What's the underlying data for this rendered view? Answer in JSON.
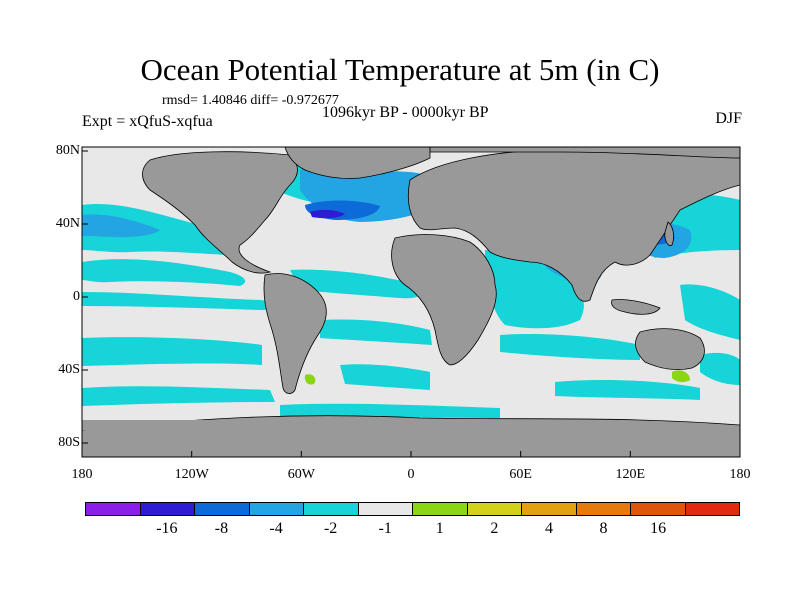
{
  "title": "Ocean Potential Temperature at 5m (in C)",
  "stats": "rmsd= 1.40846 diff= -0.972677",
  "experiment": "Expt = xQfuS-xqfua",
  "period": "1096kyr BP - 0000kyr BP",
  "season": "DJF",
  "x_ticks": [
    "180",
    "120W",
    "60W",
    "0",
    "60E",
    "120E",
    "180"
  ],
  "y_ticks": [
    "80N",
    "40N",
    "0",
    "40S",
    "80S"
  ],
  "colorbar": {
    "colors": [
      "#8b1ee8",
      "#2e1bd4",
      "#0d6ad9",
      "#23a4e3",
      "#16d4d8",
      "#e8e8e8",
      "#8ad614",
      "#d2d21a",
      "#e2a20f",
      "#e57b0c",
      "#e0550c",
      "#e22a0c"
    ],
    "labels": [
      "-16",
      "-8",
      "-4",
      "-2",
      "-1",
      "1",
      "2",
      "4",
      "8",
      "16"
    ]
  },
  "palette": {
    "land": "#999999",
    "neutral": "#e8e8e8",
    "light_cyan": "#16d4d8",
    "cyan": "#23a4e3",
    "blue": "#0d6ad9",
    "dark_blue": "#2e1bd4",
    "green": "#8ad614"
  }
}
